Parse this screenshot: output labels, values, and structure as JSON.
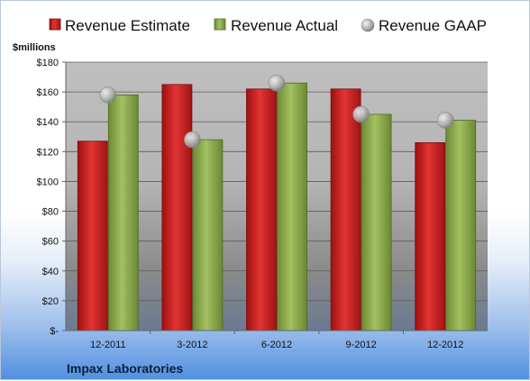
{
  "chart_data": {
    "type": "bar",
    "categories": [
      "12-2011",
      "3-2012",
      "6-2012",
      "9-2012",
      "12-2012"
    ],
    "series": [
      {
        "name": "Revenue Estimate",
        "kind": "bar",
        "values": [
          127,
          165,
          162,
          162,
          126
        ]
      },
      {
        "name": "Revenue Actual",
        "kind": "bar",
        "values": [
          158,
          128,
          166,
          145,
          141
        ]
      },
      {
        "name": "Revenue GAAP",
        "kind": "marker",
        "values": [
          158,
          128,
          166,
          145,
          141
        ]
      }
    ],
    "ylabel": "$millions",
    "ylim": [
      0,
      180
    ],
    "yticks": [
      0,
      20,
      40,
      60,
      80,
      100,
      120,
      140,
      160,
      180
    ],
    "ytick_labels": [
      "$-",
      "$20",
      "$40",
      "$60",
      "$80",
      "$100",
      "$120",
      "$140",
      "$160",
      "$180"
    ],
    "grid": true,
    "legend_position": "top",
    "colors": {
      "estimate": "#d42222",
      "actual": "#8aa84a",
      "gaap": "#a6a6a6"
    }
  },
  "footer": {
    "company": "Impax Laboratories"
  }
}
